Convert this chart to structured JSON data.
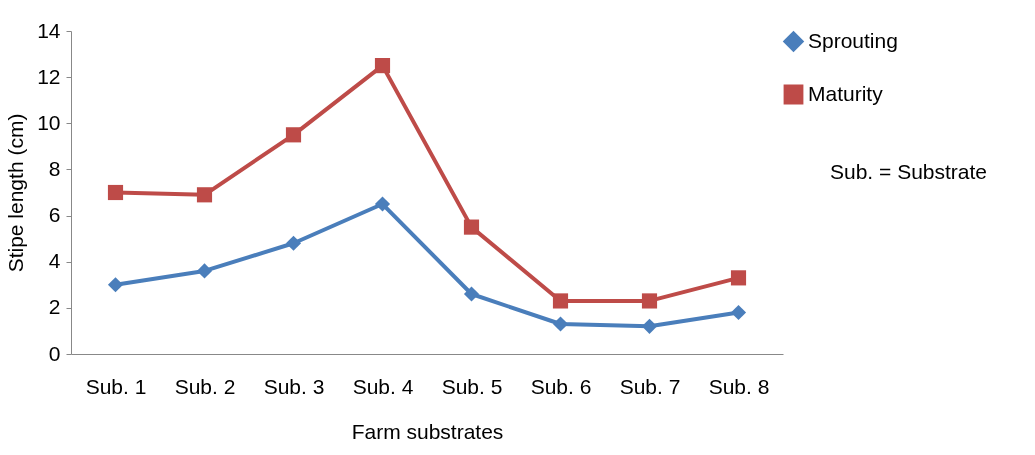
{
  "chart_data": {
    "type": "line",
    "xlabel": "Farm substrates",
    "ylabel": "Stipe length (cm)",
    "categories": [
      "Sub. 1",
      "Sub. 2",
      "Sub. 3",
      "Sub. 4",
      "Sub. 5",
      "Sub. 6",
      "Sub. 7",
      "Sub. 8"
    ],
    "series": [
      {
        "name": "Sprouting",
        "color": "#4a7ebb",
        "marker": "diamond",
        "values": [
          3.0,
          3.6,
          4.8,
          6.5,
          2.6,
          1.3,
          1.2,
          1.8
        ]
      },
      {
        "name": "Maturity",
        "color": "#be4b48",
        "marker": "square",
        "values": [
          7.0,
          6.9,
          9.5,
          12.5,
          5.5,
          2.3,
          2.3,
          3.3
        ]
      }
    ],
    "ylim": [
      0,
      14
    ],
    "yticks": [
      0,
      2,
      4,
      6,
      8,
      10,
      12,
      14
    ],
    "grid": false,
    "legend": "right",
    "annotations": [
      "Sub. = Substrate"
    ]
  }
}
